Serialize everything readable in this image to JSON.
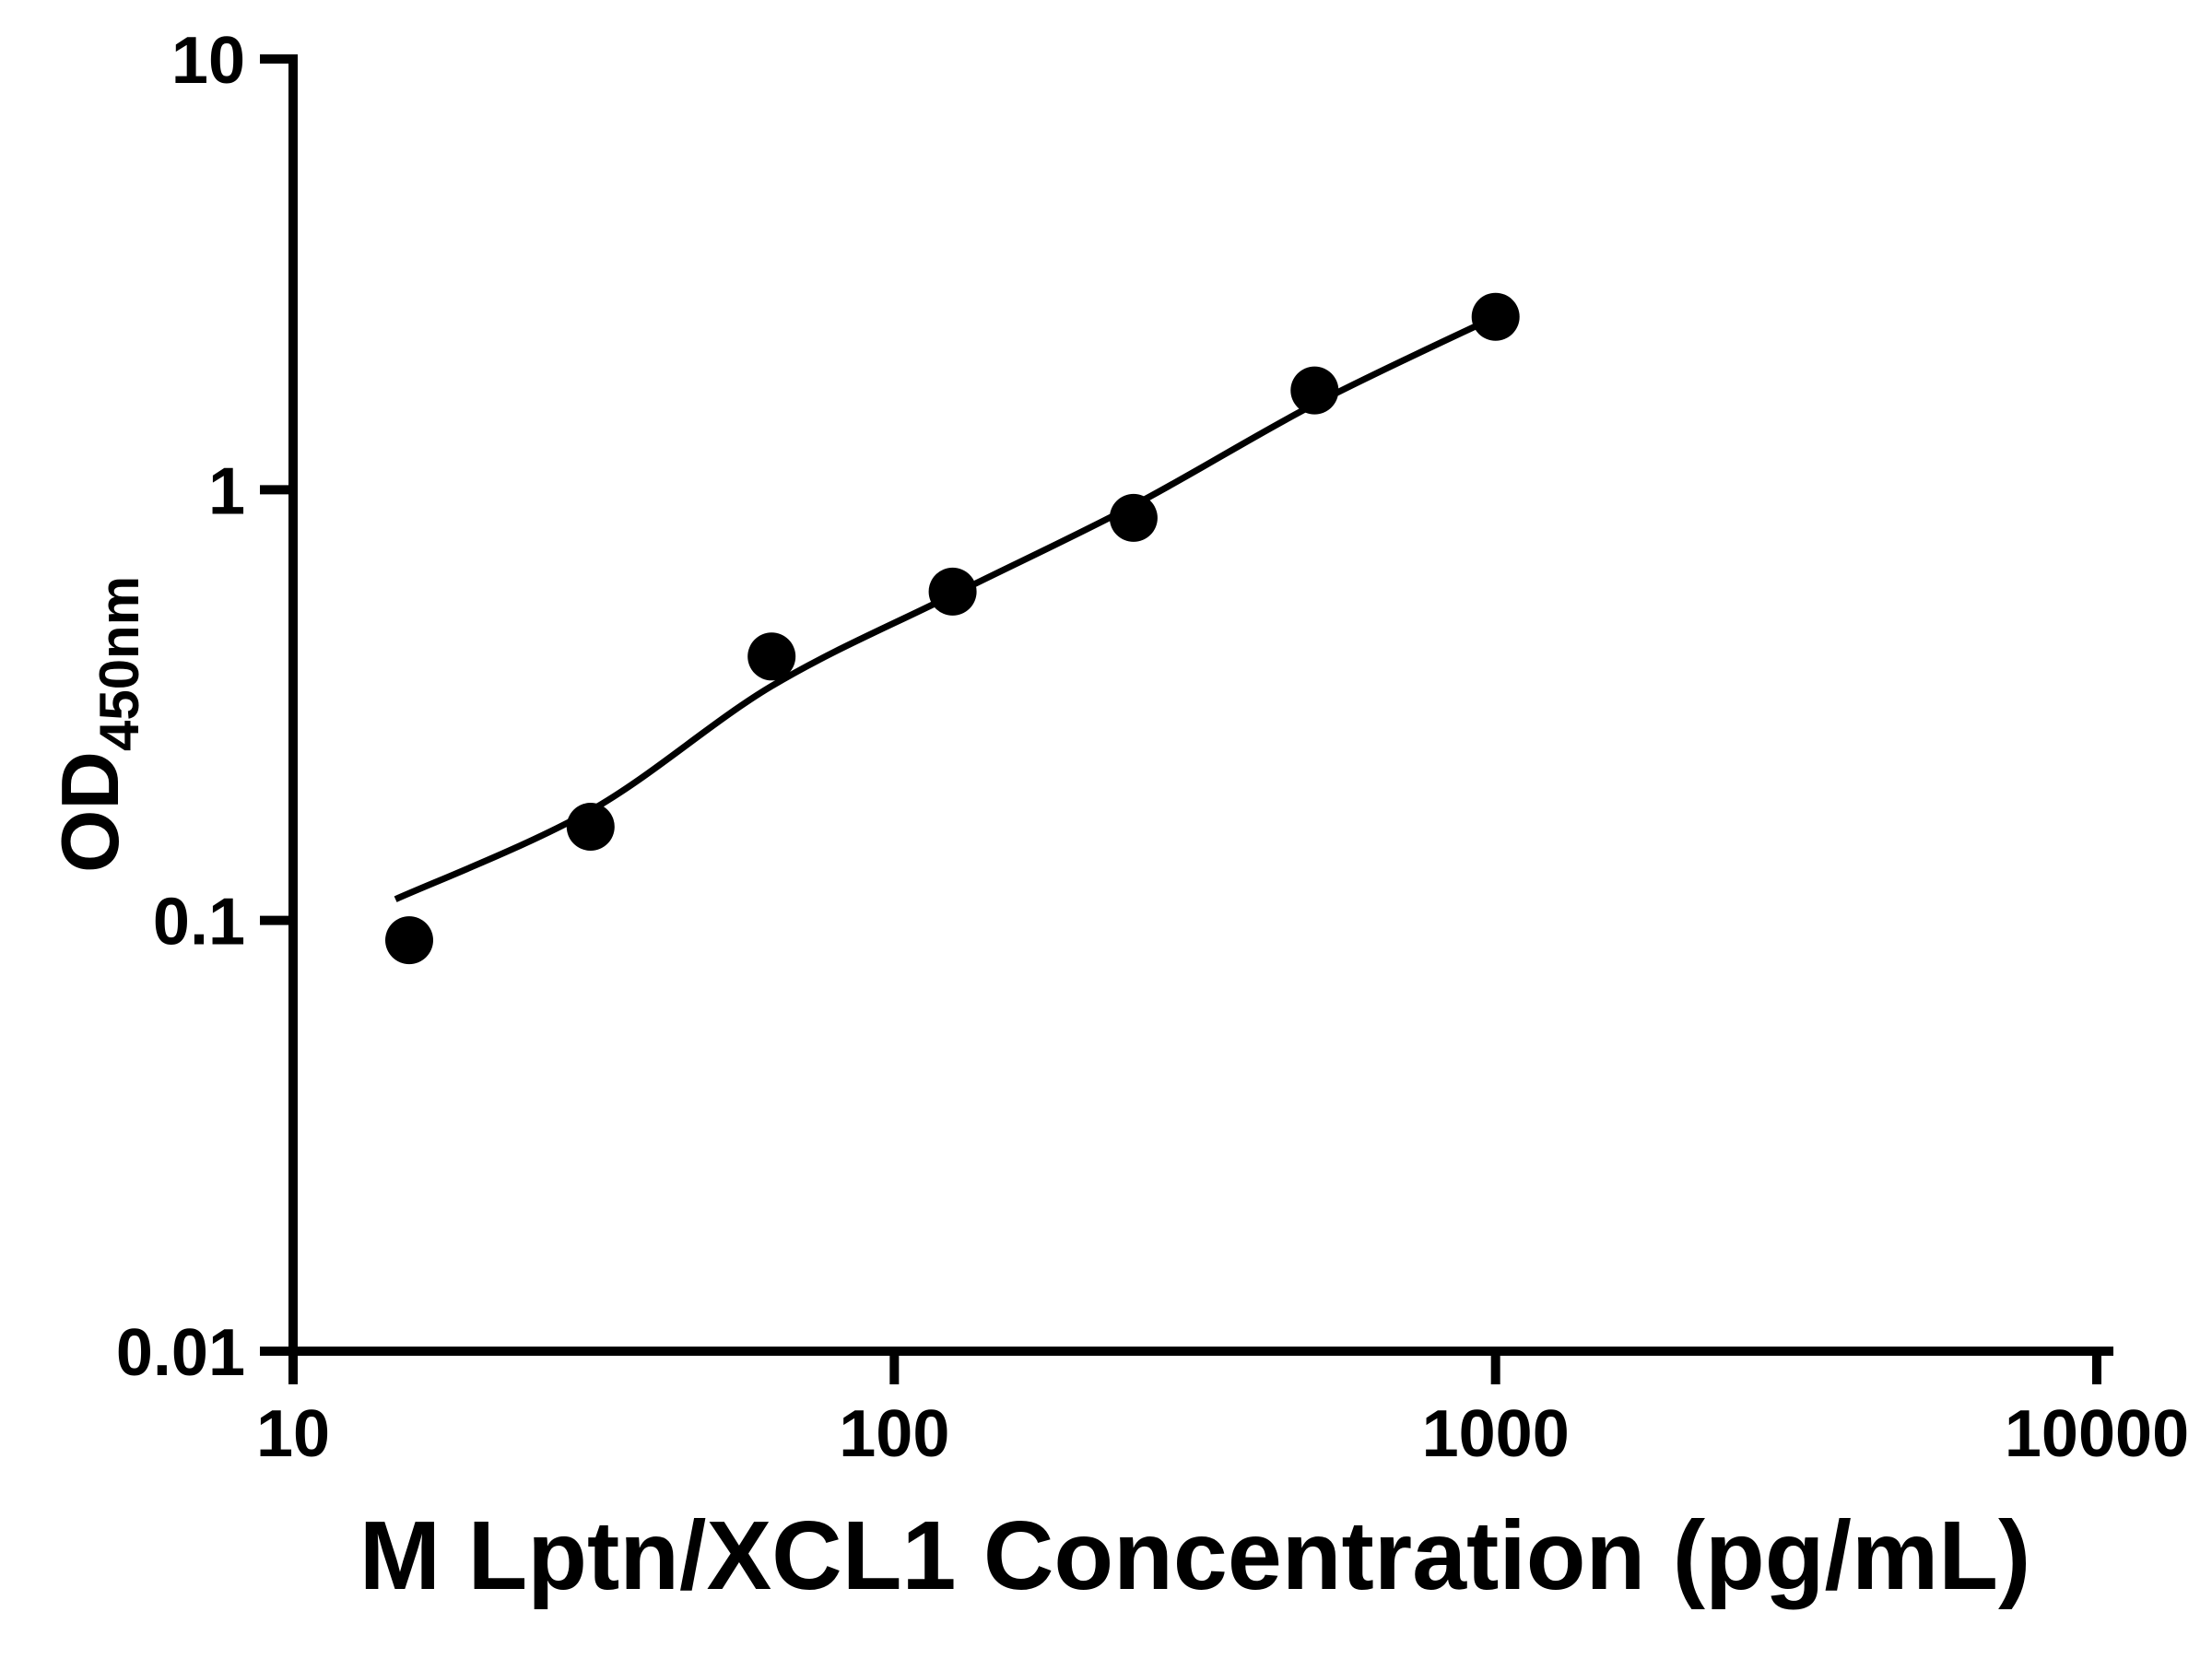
{
  "chart_data": {
    "type": "scatter",
    "title": "",
    "xlabel": "M Lptn/XCL1 Concentration (pg/mL)",
    "ylabel": "OD450nm",
    "ylabel_main": "OD",
    "ylabel_sub": "450nm",
    "x_scale": "log10",
    "y_scale": "log10",
    "xlim": [
      10,
      10000
    ],
    "ylim": [
      0.01,
      10
    ],
    "grid": false,
    "legend_position": "none",
    "x_ticks": [
      10,
      100,
      1000,
      10000
    ],
    "x_tick_labels": [
      "10",
      "100",
      "1000",
      "10000"
    ],
    "y_ticks": [
      0.01,
      0.1,
      1,
      10
    ],
    "y_tick_labels": [
      "0.01",
      "0.1",
      "1",
      "10"
    ],
    "colors": {
      "points": "#000000",
      "curve": "#000000",
      "axes": "#000000",
      "background": "#ffffff"
    },
    "series": [
      {
        "name": "standard-curve",
        "marker": "filled-circle",
        "color": "#000000",
        "points": [
          {
            "x": 15.6,
            "y": 0.09
          },
          {
            "x": 31.25,
            "y": 0.165
          },
          {
            "x": 62.5,
            "y": 0.41
          },
          {
            "x": 125,
            "y": 0.58
          },
          {
            "x": 250,
            "y": 0.86
          },
          {
            "x": 500,
            "y": 1.7
          },
          {
            "x": 1000,
            "y": 2.52
          }
        ]
      }
    ],
    "fit_curve": [
      {
        "x": 14.8,
        "y": 0.112
      },
      {
        "x": 31.25,
        "y": 0.18
      },
      {
        "x": 62.5,
        "y": 0.35
      },
      {
        "x": 125,
        "y": 0.57
      },
      {
        "x": 250,
        "y": 0.92
      },
      {
        "x": 500,
        "y": 1.58
      },
      {
        "x": 1000,
        "y": 2.52
      }
    ]
  }
}
